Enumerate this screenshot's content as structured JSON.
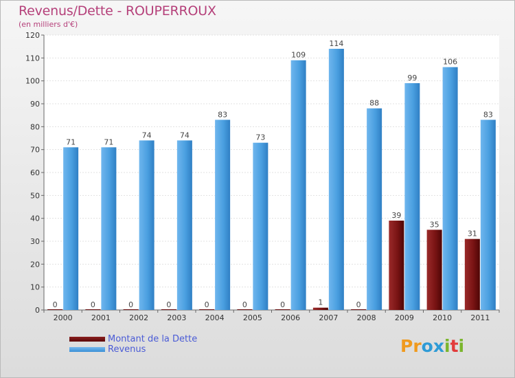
{
  "title": "Revenus/Dette - ROUPERROUX",
  "subtitle": "(en milliers d'€)",
  "logo": {
    "letters": [
      "P",
      "r",
      "o",
      "x",
      "i",
      "t",
      "i"
    ],
    "colors": [
      "#f09a1e",
      "#f09a1e",
      "#2e9bd6",
      "#2e9bd6",
      "#7ab52c",
      "#e23b3b",
      "#7ab52c"
    ]
  },
  "colors": {
    "dette": "#6b0f10",
    "revenus": "#4a9fe0",
    "title": "#b5407a",
    "legend_text": "#4a5bd6"
  },
  "chart_data": {
    "type": "bar",
    "categories": [
      "2000",
      "2001",
      "2002",
      "2003",
      "2004",
      "2005",
      "2006",
      "2007",
      "2008",
      "2009",
      "2010",
      "2011"
    ],
    "series": [
      {
        "name": "Montant de la Dette",
        "values": [
          0,
          0,
          0,
          0,
          0,
          0,
          0,
          1,
          0,
          39,
          35,
          31
        ]
      },
      {
        "name": "Revenus",
        "values": [
          71,
          71,
          74,
          74,
          83,
          73,
          109,
          114,
          88,
          99,
          106,
          83
        ]
      }
    ],
    "ylim": [
      0,
      120
    ],
    "yticks": [
      0,
      10,
      20,
      30,
      40,
      50,
      60,
      70,
      80,
      90,
      100,
      110,
      120
    ],
    "grid": true,
    "legend": "bottom-left"
  }
}
